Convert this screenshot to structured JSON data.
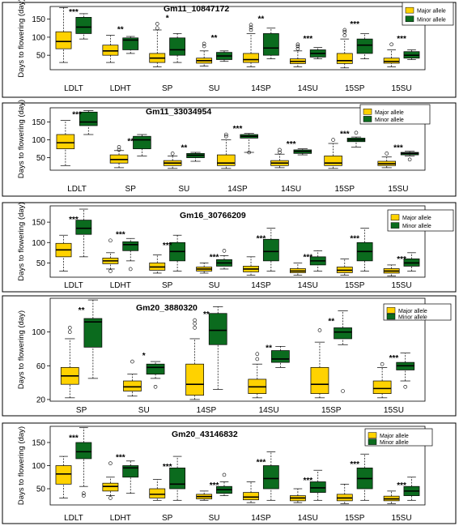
{
  "colors": {
    "major": "#FFD200",
    "minor": "#0B6B1E",
    "stroke": "#000000"
  },
  "legend": {
    "major": "Major allele",
    "minor": "Minor allele"
  },
  "ylabel": "Days to flowering (day)",
  "chart_data": [
    {
      "type": "box",
      "title": "Gm11_10847172",
      "ylabel": "Days to flowering (day)",
      "yticks": [
        50,
        100,
        150
      ],
      "ylim": [
        10,
        185
      ],
      "categories": [
        "LDLT",
        "LDHT",
        "SP",
        "SU",
        "14SP",
        "14SU",
        "15SP",
        "15SU"
      ],
      "significance": [
        "***",
        "**",
        "*",
        "**",
        "**",
        "***",
        "***",
        "***"
      ],
      "series": [
        {
          "name": "Major allele",
          "boxes": [
            {
              "min": 30,
              "q1": 68,
              "median": 88,
              "q3": 115,
              "max": 182,
              "outliers": []
            },
            {
              "min": 30,
              "q1": 50,
              "median": 62,
              "q3": 78,
              "max": 105,
              "outliers": []
            },
            {
              "min": 18,
              "q1": 30,
              "median": 42,
              "q3": 55,
              "max": 120,
              "outliers": [
                137,
                125
              ]
            },
            {
              "min": 20,
              "q1": 28,
              "median": 35,
              "q3": 42,
              "max": 62,
              "outliers": [
                75,
                82
              ]
            },
            {
              "min": 18,
              "q1": 30,
              "median": 38,
              "q3": 55,
              "max": 110,
              "outliers": [
                120,
                127,
                134
              ]
            },
            {
              "min": 18,
              "q1": 27,
              "median": 33,
              "q3": 40,
              "max": 62,
              "outliers": [
                68,
                75,
                80
              ]
            },
            {
              "min": 15,
              "q1": 27,
              "median": 35,
              "q3": 55,
              "max": 95,
              "outliers": [
                105,
                115,
                120
              ]
            },
            {
              "min": 18,
              "q1": 28,
              "median": 33,
              "q3": 42,
              "max": 65,
              "outliers": [
                80
              ]
            }
          ]
        },
        {
          "name": "Minor allele",
          "boxes": [
            {
              "min": 95,
              "q1": 110,
              "median": 128,
              "q3": 155,
              "max": 165,
              "outliers": []
            },
            {
              "min": 55,
              "q1": 65,
              "median": 92,
              "q3": 98,
              "max": 102,
              "outliers": []
            },
            {
              "min": 30,
              "q1": 50,
              "median": 65,
              "q3": 98,
              "max": 110,
              "outliers": []
            },
            {
              "min": 33,
              "q1": 38,
              "median": 48,
              "q3": 58,
              "max": 62,
              "outliers": []
            },
            {
              "min": 40,
              "q1": 50,
              "median": 70,
              "q3": 110,
              "max": 125,
              "outliers": []
            },
            {
              "min": 40,
              "q1": 45,
              "median": 55,
              "q3": 65,
              "max": 72,
              "outliers": []
            },
            {
              "min": 40,
              "q1": 55,
              "median": 78,
              "q3": 95,
              "max": 110,
              "outliers": []
            },
            {
              "min": 38,
              "q1": 42,
              "median": 50,
              "q3": 60,
              "max": 65,
              "outliers": []
            }
          ]
        }
      ]
    },
    {
      "type": "box",
      "title": "Gm11_33034954",
      "ylabel": "Days to flowering (day)",
      "yticks": [
        50,
        100,
        150
      ],
      "ylim": [
        15,
        190
      ],
      "categories": [
        "LDLT",
        "SP",
        "SU",
        "14SP",
        "14SU",
        "15SP",
        "15SU"
      ],
      "significance": [
        "***",
        "**",
        "**",
        "***",
        "***",
        "***",
        "***"
      ],
      "series": [
        {
          "name": "Major allele",
          "boxes": [
            {
              "min": 28,
              "q1": 75,
              "median": 92,
              "q3": 115,
              "max": 155,
              "outliers": []
            },
            {
              "min": 22,
              "q1": 35,
              "median": 45,
              "q3": 58,
              "max": 70,
              "outliers": [
                72,
                80
              ]
            },
            {
              "min": 20,
              "q1": 28,
              "median": 35,
              "q3": 42,
              "max": 55,
              "outliers": [
                62
              ]
            },
            {
              "min": 20,
              "q1": 28,
              "median": 35,
              "q3": 58,
              "max": 100,
              "outliers": [
                110,
                115
              ]
            },
            {
              "min": 22,
              "q1": 28,
              "median": 35,
              "q3": 42,
              "max": 60,
              "outliers": [
                65,
                72
              ]
            },
            {
              "min": 20,
              "q1": 28,
              "median": 35,
              "q3": 55,
              "max": 90,
              "outliers": [
                100
              ]
            },
            {
              "min": 22,
              "q1": 28,
              "median": 33,
              "q3": 40,
              "max": 52,
              "outliers": [
                62
              ]
            }
          ]
        },
        {
          "name": "Minor allele",
          "boxes": [
            {
              "min": 115,
              "q1": 140,
              "median": 150,
              "q3": 178,
              "max": 182,
              "outliers": []
            },
            {
              "min": 55,
              "q1": 75,
              "median": 100,
              "q3": 110,
              "max": 115,
              "outliers": []
            },
            {
              "min": 40,
              "q1": 50,
              "median": 57,
              "q3": 62,
              "max": 65,
              "outliers": []
            },
            {
              "min": 65,
              "q1": 105,
              "median": 110,
              "q3": 115,
              "max": 118,
              "outliers": [
                65
              ]
            },
            {
              "min": 58,
              "q1": 62,
              "median": 68,
              "q3": 72,
              "max": 75,
              "outliers": []
            },
            {
              "min": 80,
              "q1": 95,
              "median": 100,
              "q3": 105,
              "max": 108,
              "outliers": [
                120
              ]
            },
            {
              "min": 55,
              "q1": 58,
              "median": 62,
              "q3": 65,
              "max": 68,
              "outliers": [
                45
              ]
            }
          ]
        }
      ]
    },
    {
      "type": "box",
      "title": "Gm16_30766209",
      "ylabel": "Days to flowering (day)",
      "yticks": [
        50,
        100,
        150
      ],
      "ylim": [
        15,
        190
      ],
      "categories": [
        "LDLT",
        "LDHT",
        "SP",
        "SU",
        "14SP",
        "14SU",
        "15SP",
        "15SU"
      ],
      "significance": [
        "***",
        "***",
        "***",
        "***",
        "***",
        "***",
        "***",
        "***"
      ],
      "series": [
        {
          "name": "Major allele",
          "boxes": [
            {
              "min": 30,
              "q1": 65,
              "median": 82,
              "q3": 98,
              "max": 118,
              "outliers": []
            },
            {
              "min": 35,
              "q1": 48,
              "median": 55,
              "q3": 62,
              "max": 75,
              "outliers": [
                105,
                30
              ]
            },
            {
              "min": 25,
              "q1": 32,
              "median": 40,
              "q3": 50,
              "max": 70,
              "outliers": []
            },
            {
              "min": 25,
              "q1": 30,
              "median": 35,
              "q3": 40,
              "max": 50,
              "outliers": []
            },
            {
              "min": 20,
              "q1": 28,
              "median": 35,
              "q3": 42,
              "max": 65,
              "outliers": []
            },
            {
              "min": 20,
              "q1": 26,
              "median": 30,
              "q3": 36,
              "max": 50,
              "outliers": []
            },
            {
              "min": 20,
              "q1": 26,
              "median": 32,
              "q3": 40,
              "max": 60,
              "outliers": []
            },
            {
              "min": 18,
              "q1": 25,
              "median": 30,
              "q3": 36,
              "max": 45,
              "outliers": []
            }
          ]
        },
        {
          "name": "Minor allele",
          "boxes": [
            {
              "min": 65,
              "q1": 120,
              "median": 135,
              "q3": 155,
              "max": 182,
              "outliers": []
            },
            {
              "min": 55,
              "q1": 80,
              "median": 95,
              "q3": 102,
              "max": 110,
              "outliers": [
                35
              ]
            },
            {
              "min": 30,
              "q1": 55,
              "median": 78,
              "q3": 100,
              "max": 118,
              "outliers": []
            },
            {
              "min": 35,
              "q1": 42,
              "median": 50,
              "q3": 58,
              "max": 68,
              "outliers": [
                80
              ]
            },
            {
              "min": 30,
              "q1": 55,
              "median": 78,
              "q3": 108,
              "max": 135,
              "outliers": []
            },
            {
              "min": 30,
              "q1": 45,
              "median": 55,
              "q3": 65,
              "max": 80,
              "outliers": []
            },
            {
              "min": 30,
              "q1": 55,
              "median": 78,
              "q3": 100,
              "max": 135,
              "outliers": []
            },
            {
              "min": 30,
              "q1": 42,
              "median": 50,
              "q3": 60,
              "max": 75,
              "outliers": []
            }
          ]
        }
      ]
    },
    {
      "type": "box",
      "title": "Gm20_3880320",
      "ylabel": "Days to flowering (day)",
      "yticks": [
        20,
        60,
        100
      ],
      "ylim": [
        18,
        140
      ],
      "categories": [
        "SP",
        "SU",
        "14SP",
        "14SU",
        "15SP",
        "15SU"
      ],
      "significance": [
        "**",
        "*",
        "**",
        "**",
        "**",
        "***"
      ],
      "series": [
        {
          "name": "Major allele",
          "boxes": [
            {
              "min": 22,
              "q1": 38,
              "median": 48,
              "q3": 58,
              "max": 92,
              "outliers": [
                100,
                105
              ]
            },
            {
              "min": 24,
              "q1": 30,
              "median": 35,
              "q3": 42,
              "max": 50,
              "outliers": [
                65
              ]
            },
            {
              "min": 20,
              "q1": 25,
              "median": 38,
              "q3": 62,
              "max": 92,
              "outliers": [
                105,
                110,
                114
              ]
            },
            {
              "min": 22,
              "q1": 27,
              "median": 35,
              "q3": 44,
              "max": 62,
              "outliers": [
                68,
                74
              ]
            },
            {
              "min": 22,
              "q1": 27,
              "median": 38,
              "q3": 58,
              "max": 88,
              "outliers": [
                102
              ]
            },
            {
              "min": 22,
              "q1": 27,
              "median": 33,
              "q3": 42,
              "max": 58,
              "outliers": [
                62
              ]
            }
          ]
        },
        {
          "name": "Minor allele",
          "boxes": [
            {
              "min": 45,
              "q1": 82,
              "median": 112,
              "q3": 116,
              "max": 138,
              "outliers": []
            },
            {
              "min": 45,
              "q1": 50,
              "median": 58,
              "q3": 62,
              "max": 65,
              "outliers": [
                35
              ]
            },
            {
              "min": 32,
              "q1": 85,
              "median": 102,
              "q3": 122,
              "max": 130,
              "outliers": []
            },
            {
              "min": 58,
              "q1": 64,
              "median": 68,
              "q3": 78,
              "max": 83,
              "outliers": []
            },
            {
              "min": 85,
              "q1": 92,
              "median": 100,
              "q3": 105,
              "max": 125,
              "outliers": [
                30
              ]
            },
            {
              "min": 42,
              "q1": 55,
              "median": 60,
              "q3": 64,
              "max": 75,
              "outliers": [
                35
              ]
            }
          ]
        }
      ]
    },
    {
      "type": "box",
      "title": "Gm20_43146832",
      "ylabel": "Days to flowering (day)",
      "yticks": [
        50,
        100,
        150
      ],
      "ylim": [
        15,
        185
      ],
      "categories": [
        "LDLT",
        "LDHT",
        "SP",
        "SU",
        "14SP",
        "14SU",
        "15SP",
        "15SU"
      ],
      "significance": [
        "***",
        "***",
        "***",
        "***",
        "***",
        "***",
        "***",
        "***"
      ],
      "series": [
        {
          "name": "Major allele",
          "boxes": [
            {
              "min": 30,
              "q1": 60,
              "median": 82,
              "q3": 100,
              "max": 120,
              "outliers": []
            },
            {
              "min": 35,
              "q1": 45,
              "median": 55,
              "q3": 62,
              "max": 75,
              "outliers": [
                105,
                30
              ]
            },
            {
              "min": 25,
              "q1": 30,
              "median": 38,
              "q3": 50,
              "max": 70,
              "outliers": []
            },
            {
              "min": 25,
              "q1": 28,
              "median": 33,
              "q3": 38,
              "max": 45,
              "outliers": []
            },
            {
              "min": 20,
              "q1": 26,
              "median": 32,
              "q3": 42,
              "max": 65,
              "outliers": []
            },
            {
              "min": 20,
              "q1": 24,
              "median": 30,
              "q3": 35,
              "max": 50,
              "outliers": []
            },
            {
              "min": 18,
              "q1": 24,
              "median": 30,
              "q3": 38,
              "max": 60,
              "outliers": []
            },
            {
              "min": 18,
              "q1": 24,
              "median": 28,
              "q3": 34,
              "max": 45,
              "outliers": []
            }
          ]
        },
        {
          "name": "Minor allele",
          "boxes": [
            {
              "min": 55,
              "q1": 115,
              "median": 130,
              "q3": 150,
              "max": 182,
              "outliers": [
                35,
                40
              ]
            },
            {
              "min": 40,
              "q1": 75,
              "median": 95,
              "q3": 100,
              "max": 110,
              "outliers": []
            },
            {
              "min": 25,
              "q1": 50,
              "median": 60,
              "q3": 95,
              "max": 120,
              "outliers": []
            },
            {
              "min": 35,
              "q1": 40,
              "median": 48,
              "q3": 55,
              "max": 65,
              "outliers": [
                80
              ]
            },
            {
              "min": 25,
              "q1": 50,
              "median": 72,
              "q3": 100,
              "max": 130,
              "outliers": []
            },
            {
              "min": 25,
              "q1": 42,
              "median": 52,
              "q3": 65,
              "max": 90,
              "outliers": []
            },
            {
              "min": 25,
              "q1": 50,
              "median": 72,
              "q3": 95,
              "max": 125,
              "outliers": []
            },
            {
              "min": 25,
              "q1": 35,
              "median": 45,
              "q3": 55,
              "max": 75,
              "outliers": []
            }
          ]
        }
      ]
    }
  ]
}
